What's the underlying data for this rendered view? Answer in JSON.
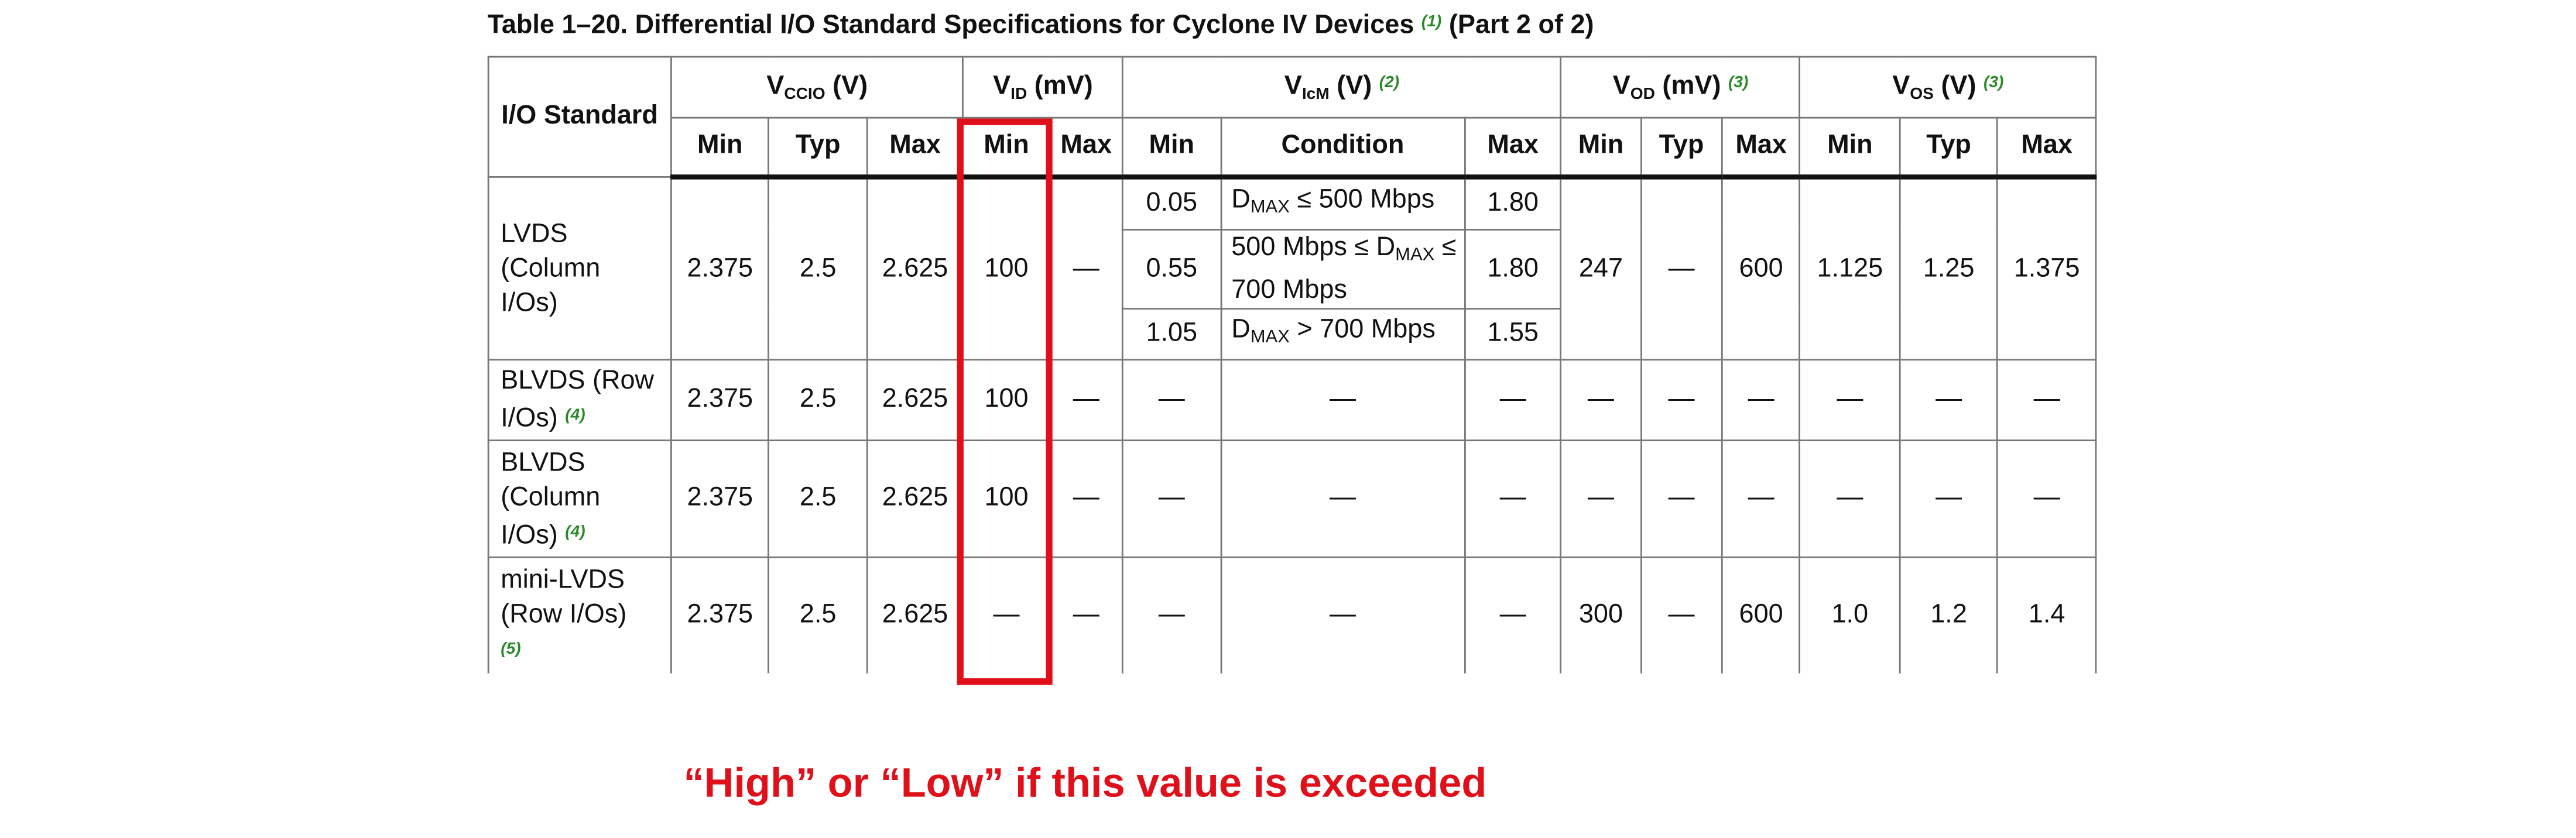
{
  "table_caption": {
    "text": "Table 1–20.  Differential I/O Standard Specifications for Cyclone IV Devices",
    "note": "(1)",
    "part": " (Part 2 of 2)"
  },
  "header": {
    "io_standard": "I/O Standard",
    "vccio": {
      "main": "V",
      "sub": "CCIO",
      "unit": " (V)",
      "note": ""
    },
    "vid": {
      "main": "V",
      "sub": "ID",
      "unit": " (mV)",
      "note": ""
    },
    "vicm": {
      "main": "V",
      "sub": "IcM",
      "unit": " (V) ",
      "note": "(2)"
    },
    "vod": {
      "main": "V",
      "sub": "OD",
      "unit": " (mV) ",
      "note": "(3)"
    },
    "vos": {
      "main": "V",
      "sub": "OS",
      "unit": " (V) ",
      "note": "(3)"
    },
    "min": "Min",
    "typ": "Typ",
    "max": "Max",
    "condition": "Condition"
  },
  "rows": {
    "lvds": {
      "name": "LVDS (Column I/Os)",
      "vccio": [
        "2.375",
        "2.5",
        "2.625"
      ],
      "vid": [
        "100",
        "—"
      ],
      "vicm": [
        {
          "min": "0.05",
          "cond_pre": "D",
          "cond_sub": "MAX",
          "cond_post": " ≤  500 Mbps",
          "max": "1.80"
        },
        {
          "min": "0.55",
          "cond_pre": "500 Mbps ≤ D",
          "cond_sub": "MAX",
          "cond_post": " ≤ 700 Mbps",
          "max": "1.80"
        },
        {
          "min": "1.05",
          "cond_pre": "D",
          "cond_sub": "MAX",
          "cond_post": " > 700 Mbps",
          "max": "1.55"
        }
      ],
      "vod": [
        "247",
        "—",
        "600"
      ],
      "vos": [
        "1.125",
        "1.25",
        "1.375"
      ]
    },
    "blvds_row": {
      "name": "BLVDS (Row I/Os) ",
      "note": "(4)",
      "values": [
        "2.375",
        "2.5",
        "2.625",
        "100",
        "—",
        "—",
        "—",
        "—",
        "—",
        "—",
        "—",
        "—",
        "—",
        "—"
      ]
    },
    "blvds_col": {
      "name": "BLVDS (Column I/Os) ",
      "note": "(4)",
      "values": [
        "2.375",
        "2.5",
        "2.625",
        "100",
        "—",
        "—",
        "—",
        "—",
        "—",
        "—",
        "—",
        "—",
        "—",
        "—"
      ]
    },
    "mini_lvds": {
      "name": "mini-LVDS (Row I/Os)",
      "note": "(5)",
      "values": [
        "2.375",
        "2.5",
        "2.625",
        "—",
        "—",
        "—",
        "—",
        "—",
        "300",
        "—",
        "600",
        "1.0",
        "1.2",
        "1.4"
      ]
    }
  },
  "annotation": "“High” or “Low” if this value is exceeded",
  "colors": {
    "highlight": "#e0101a",
    "note": "#2a8a2a"
  }
}
